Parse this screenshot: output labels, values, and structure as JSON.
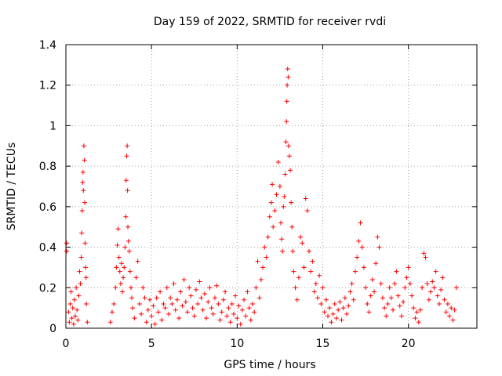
{
  "chart_data": {
    "type": "scatter",
    "title": "Day 159 of 2022, SRMTID for receiver rvdi",
    "xlabel": "GPS time / hours",
    "ylabel": "SRMTID / TECUs",
    "xlim": [
      0,
      24
    ],
    "ylim": [
      0,
      1.4
    ],
    "x_ticks": [
      0,
      5,
      10,
      15,
      20
    ],
    "x_tick_labels": [
      "0",
      "5",
      "10",
      "15",
      "20"
    ],
    "y_ticks": [
      0,
      0.2,
      0.4,
      0.6,
      0.8,
      1,
      1.2,
      1.4
    ],
    "y_tick_labels": [
      "0",
      "0.2",
      "0.4",
      "0.6",
      "0.8",
      "1",
      "1.2",
      "1.4"
    ],
    "grid": true,
    "marker": "+",
    "series": [
      {
        "name": "SRMTID",
        "color": "#ff0000",
        "points": [
          [
            0.05,
            0.42
          ],
          [
            0.05,
            0.38
          ],
          [
            0.15,
            0.08
          ],
          [
            0.2,
            0.03
          ],
          [
            0.25,
            0.12
          ],
          [
            0.3,
            0.18
          ],
          [
            0.35,
            0.05
          ],
          [
            0.4,
            0.1
          ],
          [
            0.45,
            0.02
          ],
          [
            0.5,
            0.14
          ],
          [
            0.55,
            0.06
          ],
          [
            0.6,
            0.2
          ],
          [
            0.65,
            0.09
          ],
          [
            0.7,
            0.04
          ],
          [
            0.75,
            0.16
          ],
          [
            0.8,
            0.28
          ],
          [
            0.85,
            0.22
          ],
          [
            0.9,
            0.35
          ],
          [
            0.92,
            0.47
          ],
          [
            0.95,
            0.58
          ],
          [
            0.98,
            0.72
          ],
          [
            1.0,
            0.77
          ],
          [
            1.02,
            0.68
          ],
          [
            1.05,
            0.9
          ],
          [
            1.08,
            0.83
          ],
          [
            1.1,
            0.62
          ],
          [
            1.12,
            0.42
          ],
          [
            1.15,
            0.3
          ],
          [
            1.18,
            0.25
          ],
          [
            1.2,
            0.12
          ],
          [
            1.25,
            0.03
          ],
          [
            2.6,
            0.03
          ],
          [
            2.7,
            0.08
          ],
          [
            2.8,
            0.12
          ],
          [
            2.9,
            0.2
          ],
          [
            2.95,
            0.3
          ],
          [
            3.0,
            0.41
          ],
          [
            3.05,
            0.49
          ],
          [
            3.1,
            0.35
          ],
          [
            3.15,
            0.28
          ],
          [
            3.2,
            0.22
          ],
          [
            3.25,
            0.32
          ],
          [
            3.3,
            0.18
          ],
          [
            3.35,
            0.25
          ],
          [
            3.4,
            0.3
          ],
          [
            3.45,
            0.4
          ],
          [
            3.5,
            0.55
          ],
          [
            3.52,
            0.73
          ],
          [
            3.55,
            0.85
          ],
          [
            3.58,
            0.9
          ],
          [
            3.6,
            0.68
          ],
          [
            3.62,
            0.5
          ],
          [
            3.65,
            0.43
          ],
          [
            3.7,
            0.38
          ],
          [
            3.75,
            0.28
          ],
          [
            3.8,
            0.2
          ],
          [
            3.85,
            0.15
          ],
          [
            3.9,
            0.1
          ],
          [
            4.0,
            0.05
          ],
          [
            4.1,
            0.25
          ],
          [
            4.2,
            0.33
          ],
          [
            4.3,
            0.12
          ],
          [
            4.4,
            0.07
          ],
          [
            4.5,
            0.2
          ],
          [
            4.6,
            0.15
          ],
          [
            4.7,
            0.03
          ],
          [
            4.8,
            0.09
          ],
          [
            4.9,
            0.14
          ],
          [
            5.0,
            0.06
          ],
          [
            5.1,
            0.11
          ],
          [
            5.2,
            0.02
          ],
          [
            5.3,
            0.15
          ],
          [
            5.4,
            0.08
          ],
          [
            5.5,
            0.18
          ],
          [
            5.6,
            0.04
          ],
          [
            5.7,
            0.12
          ],
          [
            5.8,
            0.1
          ],
          [
            5.9,
            0.2
          ],
          [
            6.0,
            0.07
          ],
          [
            6.1,
            0.15
          ],
          [
            6.2,
            0.12
          ],
          [
            6.3,
            0.22
          ],
          [
            6.4,
            0.09
          ],
          [
            6.5,
            0.14
          ],
          [
            6.6,
            0.05
          ],
          [
            6.7,
            0.18
          ],
          [
            6.8,
            0.11
          ],
          [
            6.9,
            0.24
          ],
          [
            7.0,
            0.13
          ],
          [
            7.1,
            0.08
          ],
          [
            7.2,
            0.2
          ],
          [
            7.3,
            0.16
          ],
          [
            7.4,
            0.1
          ],
          [
            7.5,
            0.06
          ],
          [
            7.6,
            0.19
          ],
          [
            7.7,
            0.12
          ],
          [
            7.8,
            0.23
          ],
          [
            7.9,
            0.15
          ],
          [
            8.0,
            0.09
          ],
          [
            8.1,
            0.17
          ],
          [
            8.2,
            0.05
          ],
          [
            8.3,
            0.13
          ],
          [
            8.4,
            0.2
          ],
          [
            8.5,
            0.1
          ],
          [
            8.6,
            0.07
          ],
          [
            8.7,
            0.15
          ],
          [
            8.8,
            0.21
          ],
          [
            8.9,
            0.12
          ],
          [
            9.0,
            0.04
          ],
          [
            9.1,
            0.08
          ],
          [
            9.2,
            0.14
          ],
          [
            9.3,
            0.18
          ],
          [
            9.4,
            0.06
          ],
          [
            9.5,
            0.1
          ],
          [
            9.6,
            0.03
          ],
          [
            9.7,
            0.12
          ],
          [
            9.8,
            0.07
          ],
          [
            9.9,
            0.16
          ],
          [
            10.0,
            0.05
          ],
          [
            10.1,
            0.11
          ],
          [
            10.2,
            0.02
          ],
          [
            10.3,
            0.09
          ],
          [
            10.4,
            0.14
          ],
          [
            10.5,
            0.06
          ],
          [
            10.6,
            0.18
          ],
          [
            10.7,
            0.1
          ],
          [
            10.8,
            0.04
          ],
          [
            10.9,
            0.12
          ],
          [
            11.0,
            0.08
          ],
          [
            11.1,
            0.2
          ],
          [
            11.2,
            0.33
          ],
          [
            11.3,
            0.15
          ],
          [
            11.4,
            0.24
          ],
          [
            11.5,
            0.3
          ],
          [
            11.6,
            0.4
          ],
          [
            11.7,
            0.35
          ],
          [
            11.8,
            0.45
          ],
          [
            11.9,
            0.55
          ],
          [
            12.0,
            0.62
          ],
          [
            12.05,
            0.71
          ],
          [
            12.1,
            0.5
          ],
          [
            12.2,
            0.58
          ],
          [
            12.3,
            0.66
          ],
          [
            12.4,
            0.82
          ],
          [
            12.5,
            0.7
          ],
          [
            12.55,
            0.52
          ],
          [
            12.6,
            0.44
          ],
          [
            12.65,
            0.38
          ],
          [
            12.7,
            0.6
          ],
          [
            12.75,
            0.65
          ],
          [
            12.8,
            0.76
          ],
          [
            12.85,
            0.92
          ],
          [
            12.88,
            1.02
          ],
          [
            12.9,
            1.12
          ],
          [
            12.92,
            1.2
          ],
          [
            12.95,
            1.28
          ],
          [
            12.98,
            1.24
          ],
          [
            13.0,
            0.9
          ],
          [
            13.05,
            0.85
          ],
          [
            13.1,
            0.78
          ],
          [
            13.15,
            0.62
          ],
          [
            13.2,
            0.5
          ],
          [
            13.25,
            0.38
          ],
          [
            13.3,
            0.28
          ],
          [
            13.4,
            0.2
          ],
          [
            13.5,
            0.14
          ],
          [
            13.6,
            0.25
          ],
          [
            13.7,
            0.45
          ],
          [
            13.8,
            0.42
          ],
          [
            13.9,
            0.3
          ],
          [
            14.0,
            0.64
          ],
          [
            14.1,
            0.58
          ],
          [
            14.2,
            0.38
          ],
          [
            14.3,
            0.28
          ],
          [
            14.4,
            0.33
          ],
          [
            14.5,
            0.18
          ],
          [
            14.6,
            0.22
          ],
          [
            14.7,
            0.15
          ],
          [
            14.8,
            0.26
          ],
          [
            14.9,
            0.12
          ],
          [
            15.0,
            0.2
          ],
          [
            15.1,
            0.08
          ],
          [
            15.2,
            0.14
          ],
          [
            15.3,
            0.06
          ],
          [
            15.4,
            0.1
          ],
          [
            15.5,
            0.03
          ],
          [
            15.6,
            0.07
          ],
          [
            15.7,
            0.12
          ],
          [
            15.8,
            0.05
          ],
          [
            15.9,
            0.09
          ],
          [
            16.0,
            0.13
          ],
          [
            16.1,
            0.04
          ],
          [
            16.2,
            0.1
          ],
          [
            16.3,
            0.15
          ],
          [
            16.4,
            0.07
          ],
          [
            16.5,
            0.11
          ],
          [
            16.6,
            0.18
          ],
          [
            16.7,
            0.22
          ],
          [
            16.8,
            0.14
          ],
          [
            16.9,
            0.28
          ],
          [
            17.0,
            0.35
          ],
          [
            17.1,
            0.43
          ],
          [
            17.2,
            0.52
          ],
          [
            17.3,
            0.4
          ],
          [
            17.4,
            0.3
          ],
          [
            17.5,
            0.2
          ],
          [
            17.6,
            0.12
          ],
          [
            17.7,
            0.08
          ],
          [
            17.8,
            0.16
          ],
          [
            17.9,
            0.24
          ],
          [
            18.0,
            0.18
          ],
          [
            18.1,
            0.32
          ],
          [
            18.2,
            0.45
          ],
          [
            18.3,
            0.4
          ],
          [
            18.4,
            0.22
          ],
          [
            18.5,
            0.15
          ],
          [
            18.6,
            0.1
          ],
          [
            18.7,
            0.06
          ],
          [
            18.8,
            0.12
          ],
          [
            18.9,
            0.2
          ],
          [
            19.0,
            0.15
          ],
          [
            19.1,
            0.09
          ],
          [
            19.2,
            0.22
          ],
          [
            19.3,
            0.28
          ],
          [
            19.4,
            0.16
          ],
          [
            19.5,
            0.11
          ],
          [
            19.6,
            0.06
          ],
          [
            19.7,
            0.13
          ],
          [
            19.8,
            0.2
          ],
          [
            19.9,
            0.25
          ],
          [
            20.0,
            0.3
          ],
          [
            20.1,
            0.22
          ],
          [
            20.2,
            0.16
          ],
          [
            20.3,
            0.1
          ],
          [
            20.4,
            0.05
          ],
          [
            20.5,
            0.08
          ],
          [
            20.6,
            0.03
          ],
          [
            20.7,
            0.09
          ],
          [
            20.8,
            0.2
          ],
          [
            20.9,
            0.37
          ],
          [
            21.0,
            0.35
          ],
          [
            21.1,
            0.22
          ],
          [
            21.2,
            0.14
          ],
          [
            21.3,
            0.18
          ],
          [
            21.4,
            0.23
          ],
          [
            21.5,
            0.2
          ],
          [
            21.6,
            0.28
          ],
          [
            21.7,
            0.16
          ],
          [
            21.8,
            0.12
          ],
          [
            21.9,
            0.19
          ],
          [
            22.0,
            0.25
          ],
          [
            22.1,
            0.14
          ],
          [
            22.2,
            0.08
          ],
          [
            22.3,
            0.12
          ],
          [
            22.4,
            0.06
          ],
          [
            22.5,
            0.1
          ],
          [
            22.6,
            0.04
          ],
          [
            22.7,
            0.09
          ],
          [
            22.8,
            0.2
          ]
        ]
      }
    ]
  }
}
